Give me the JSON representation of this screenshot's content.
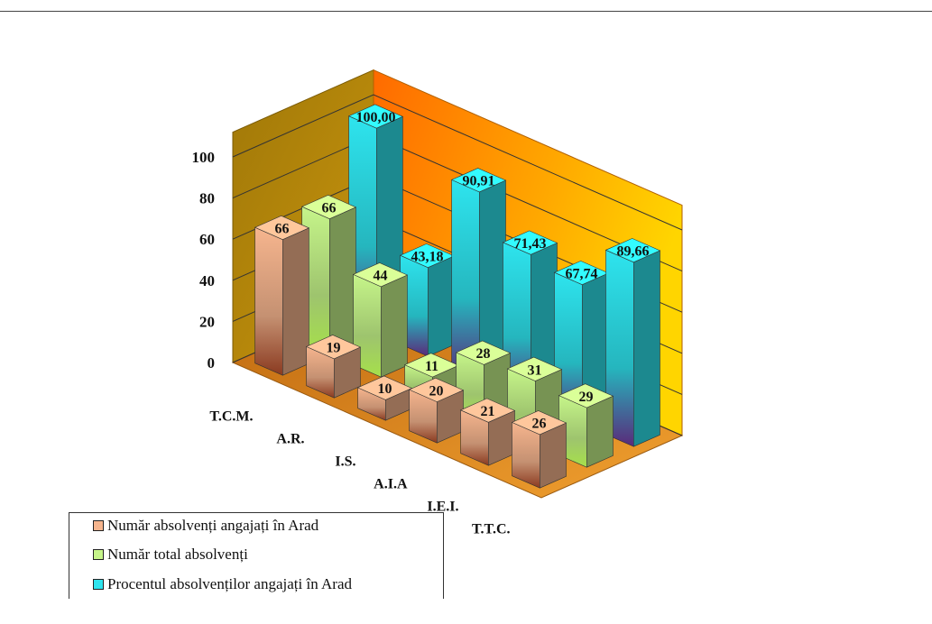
{
  "chart_data": {
    "type": "bar",
    "subtype": "3d-column-clustered-depth",
    "categories": [
      "T.C.M.",
      "A.R.",
      "I.S.",
      "A.I.A",
      "I.E.I.",
      "T.T.C."
    ],
    "series": [
      {
        "name": "Număr absolvenți angajați în Arad",
        "values": [
          66,
          19,
          10,
          20,
          21,
          26
        ],
        "labels": [
          "66",
          "19",
          "10",
          "20",
          "21",
          "26"
        ],
        "color": "#f6b58e"
      },
      {
        "name": "Număr total absolvenți",
        "values": [
          66,
          44,
          11,
          28,
          31,
          29
        ],
        "labels": [
          "66",
          "44",
          "11",
          "28",
          "31",
          "29"
        ],
        "color": "#c6f58a"
      },
      {
        "name": "Procentul absolvenților angajați în Arad",
        "values": [
          100.0,
          43.18,
          90.91,
          71.43,
          67.74,
          89.66
        ],
        "labels": [
          "100,00",
          "43,18",
          "90,91",
          "71,43",
          "67,74",
          "89,66"
        ],
        "color": "#2ee4ee"
      }
    ],
    "yticks": [
      "0",
      "20",
      "40",
      "60",
      "80",
      "100"
    ],
    "ylim": [
      0,
      100
    ],
    "grid": true,
    "legend_position": "bottom-left",
    "colors": {
      "wall_left": "#b8860b",
      "wall_back": "#ff8c00",
      "floor": "#e0901a"
    }
  }
}
